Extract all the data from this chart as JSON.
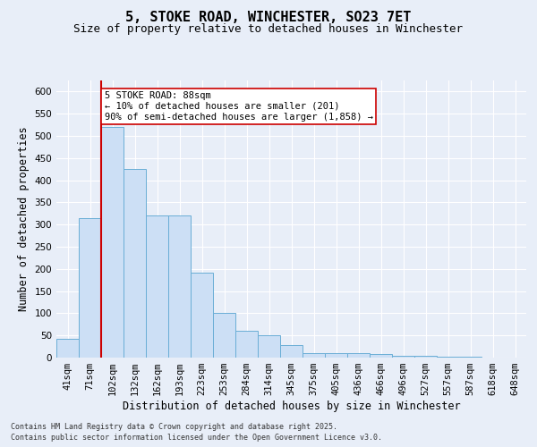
{
  "title": "5, STOKE ROAD, WINCHESTER, SO23 7ET",
  "subtitle": "Size of property relative to detached houses in Winchester",
  "xlabel": "Distribution of detached houses by size in Winchester",
  "ylabel": "Number of detached properties",
  "categories": [
    "41sqm",
    "71sqm",
    "102sqm",
    "132sqm",
    "162sqm",
    "193sqm",
    "223sqm",
    "253sqm",
    "284sqm",
    "314sqm",
    "345sqm",
    "375sqm",
    "405sqm",
    "436sqm",
    "466sqm",
    "496sqm",
    "527sqm",
    "557sqm",
    "587sqm",
    "618sqm",
    "648sqm"
  ],
  "values": [
    42,
    315,
    520,
    425,
    320,
    320,
    192,
    100,
    60,
    50,
    28,
    10,
    10,
    10,
    8,
    5,
    5,
    2,
    2,
    1,
    1
  ],
  "bar_color": "#ccdff5",
  "bar_edge_color": "#6aaed6",
  "vline_color": "#cc0000",
  "vline_x_index": 1.5,
  "annotation_text": "5 STOKE ROAD: 88sqm\n← 10% of detached houses are smaller (201)\n90% of semi-detached houses are larger (1,858) →",
  "annotation_box_color": "#ffffff",
  "annotation_box_edge": "#cc0000",
  "ylim": [
    0,
    625
  ],
  "yticks": [
    0,
    50,
    100,
    150,
    200,
    250,
    300,
    350,
    400,
    450,
    500,
    550,
    600
  ],
  "bg_color": "#e8eef8",
  "plot_bg_color": "#e8eef8",
  "grid_color": "#ffffff",
  "footer_line1": "Contains HM Land Registry data © Crown copyright and database right 2025.",
  "footer_line2": "Contains public sector information licensed under the Open Government Licence v3.0.",
  "title_fontsize": 11,
  "subtitle_fontsize": 9,
  "axis_label_fontsize": 8.5,
  "tick_fontsize": 7.5,
  "annotation_fontsize": 7.5
}
